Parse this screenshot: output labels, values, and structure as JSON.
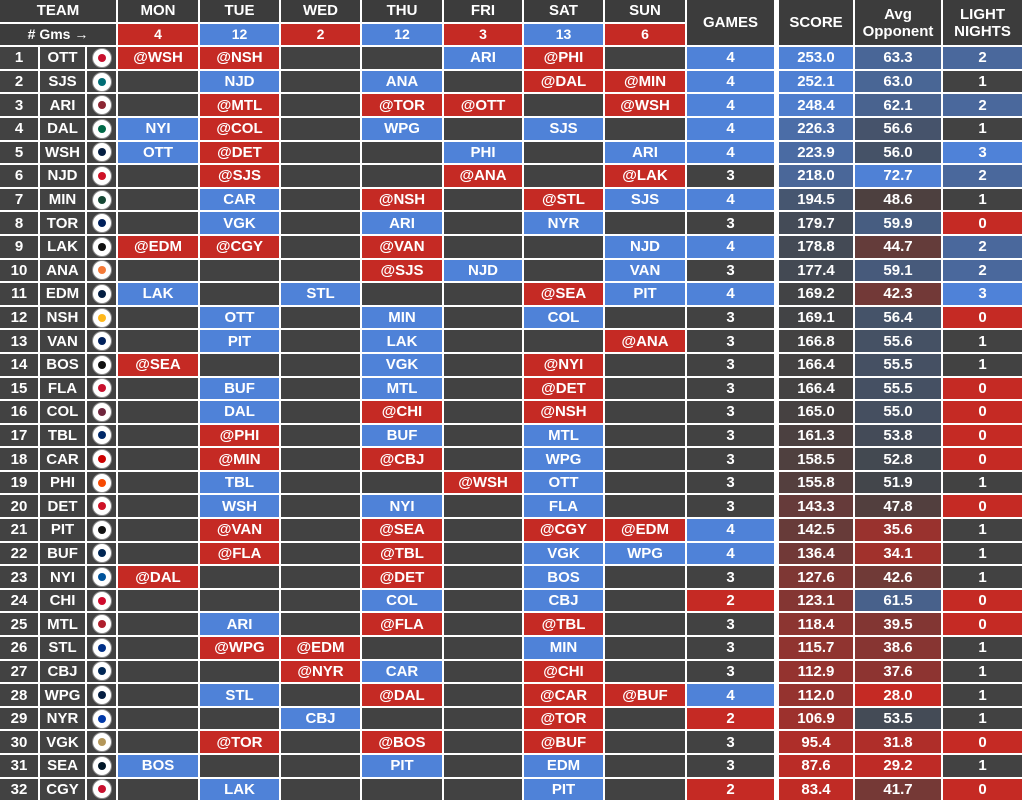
{
  "header": {
    "team": "TEAM",
    "days": [
      "MON",
      "TUE",
      "WED",
      "THU",
      "FRI",
      "SAT",
      "SUN"
    ],
    "games": "GAMES",
    "score": "SCORE",
    "avg_line1": "Avg",
    "avg_line2": "Opponent",
    "light_line1": "LIGHT",
    "light_line2": "NIGHTS",
    "gms_label": "# Gms →",
    "day_counts": [
      "4",
      "12",
      "2",
      "12",
      "3",
      "13",
      "6"
    ]
  },
  "colors": {
    "blue": "#4f82d8",
    "red": "#c52a24",
    "dark": "#424242"
  },
  "rows": [
    {
      "rank": "1",
      "team": "OTT",
      "logo": "senators-logo",
      "days": [
        "@WSH",
        "@NSH",
        "",
        "",
        "ARI",
        "@PHI",
        ""
      ],
      "games": "4",
      "score": "253.0",
      "avg": "63.3",
      "light": "2",
      "logo_color": "#c8102e"
    },
    {
      "rank": "2",
      "team": "SJS",
      "logo": "sharks-logo",
      "days": [
        "",
        "NJD",
        "",
        "ANA",
        "",
        "@DAL",
        "@MIN"
      ],
      "games": "4",
      "score": "252.1",
      "avg": "63.0",
      "light": "1",
      "logo_color": "#006d75"
    },
    {
      "rank": "3",
      "team": "ARI",
      "logo": "coyotes-logo",
      "days": [
        "",
        "@MTL",
        "",
        "@TOR",
        "@OTT",
        "",
        "@WSH"
      ],
      "games": "4",
      "score": "248.4",
      "avg": "62.1",
      "light": "2",
      "logo_color": "#8c2633"
    },
    {
      "rank": "4",
      "team": "DAL",
      "logo": "stars-logo",
      "days": [
        "NYI",
        "@COL",
        "",
        "WPG",
        "",
        "SJS",
        ""
      ],
      "games": "4",
      "score": "226.3",
      "avg": "56.6",
      "light": "1",
      "logo_color": "#006847"
    },
    {
      "rank": "5",
      "team": "WSH",
      "logo": "capitals-logo",
      "days": [
        "OTT",
        "@DET",
        "",
        "",
        "PHI",
        "",
        "ARI"
      ],
      "games": "4",
      "score": "223.9",
      "avg": "56.0",
      "light": "3",
      "logo_color": "#041e42"
    },
    {
      "rank": "6",
      "team": "NJD",
      "logo": "devils-logo",
      "days": [
        "",
        "@SJS",
        "",
        "",
        "@ANA",
        "",
        "@LAK"
      ],
      "games": "3",
      "score": "218.0",
      "avg": "72.7",
      "light": "2",
      "logo_color": "#ce1126"
    },
    {
      "rank": "7",
      "team": "MIN",
      "logo": "wild-logo",
      "days": [
        "",
        "CAR",
        "",
        "@NSH",
        "",
        "@STL",
        "SJS"
      ],
      "games": "4",
      "score": "194.5",
      "avg": "48.6",
      "light": "1",
      "logo_color": "#154734"
    },
    {
      "rank": "8",
      "team": "TOR",
      "logo": "maple-leafs-logo",
      "days": [
        "",
        "VGK",
        "",
        "ARI",
        "",
        "NYR",
        ""
      ],
      "games": "3",
      "score": "179.7",
      "avg": "59.9",
      "light": "0",
      "logo_color": "#00205b"
    },
    {
      "rank": "9",
      "team": "LAK",
      "logo": "kings-logo",
      "days": [
        "@EDM",
        "@CGY",
        "",
        "@VAN",
        "",
        "",
        "NJD"
      ],
      "games": "4",
      "score": "178.8",
      "avg": "44.7",
      "light": "2",
      "logo_color": "#111111"
    },
    {
      "rank": "10",
      "team": "ANA",
      "logo": "ducks-logo",
      "days": [
        "",
        "",
        "",
        "@SJS",
        "NJD",
        "",
        "VAN"
      ],
      "games": "3",
      "score": "177.4",
      "avg": "59.1",
      "light": "2",
      "logo_color": "#f47a38"
    },
    {
      "rank": "11",
      "team": "EDM",
      "logo": "oilers-logo",
      "days": [
        "LAK",
        "",
        "STL",
        "",
        "",
        "@SEA",
        "PIT"
      ],
      "games": "4",
      "score": "169.2",
      "avg": "42.3",
      "light": "3",
      "logo_color": "#041e42"
    },
    {
      "rank": "12",
      "team": "NSH",
      "logo": "predators-logo",
      "days": [
        "",
        "OTT",
        "",
        "MIN",
        "",
        "COL",
        ""
      ],
      "games": "3",
      "score": "169.1",
      "avg": "56.4",
      "light": "0",
      "logo_color": "#ffb81c"
    },
    {
      "rank": "13",
      "team": "VAN",
      "logo": "canucks-logo",
      "days": [
        "",
        "PIT",
        "",
        "LAK",
        "",
        "",
        "@ANA"
      ],
      "games": "3",
      "score": "166.8",
      "avg": "55.6",
      "light": "1",
      "logo_color": "#00205b"
    },
    {
      "rank": "14",
      "team": "BOS",
      "logo": "bruins-logo",
      "days": [
        "@SEA",
        "",
        "",
        "VGK",
        "",
        "@NYI",
        ""
      ],
      "games": "3",
      "score": "166.4",
      "avg": "55.5",
      "light": "1",
      "logo_color": "#111111"
    },
    {
      "rank": "15",
      "team": "FLA",
      "logo": "panthers-logo",
      "days": [
        "",
        "BUF",
        "",
        "MTL",
        "",
        "@DET",
        ""
      ],
      "games": "3",
      "score": "166.4",
      "avg": "55.5",
      "light": "0",
      "logo_color": "#c8102e"
    },
    {
      "rank": "16",
      "team": "COL",
      "logo": "avalanche-logo",
      "days": [
        "",
        "DAL",
        "",
        "@CHI",
        "",
        "@NSH",
        ""
      ],
      "games": "3",
      "score": "165.0",
      "avg": "55.0",
      "light": "0",
      "logo_color": "#6f263d"
    },
    {
      "rank": "17",
      "team": "TBL",
      "logo": "lightning-logo",
      "days": [
        "",
        "@PHI",
        "",
        "BUF",
        "",
        "MTL",
        ""
      ],
      "games": "3",
      "score": "161.3",
      "avg": "53.8",
      "light": "0",
      "logo_color": "#002868"
    },
    {
      "rank": "18",
      "team": "CAR",
      "logo": "hurricanes-logo",
      "days": [
        "",
        "@MIN",
        "",
        "@CBJ",
        "",
        "WPG",
        ""
      ],
      "games": "3",
      "score": "158.5",
      "avg": "52.8",
      "light": "0",
      "logo_color": "#cc0000"
    },
    {
      "rank": "19",
      "team": "PHI",
      "logo": "flyers-logo",
      "days": [
        "",
        "TBL",
        "",
        "",
        "@WSH",
        "OTT",
        ""
      ],
      "games": "3",
      "score": "155.8",
      "avg": "51.9",
      "light": "1",
      "logo_color": "#f74902"
    },
    {
      "rank": "20",
      "team": "DET",
      "logo": "red-wings-logo",
      "days": [
        "",
        "WSH",
        "",
        "NYI",
        "",
        "FLA",
        ""
      ],
      "games": "3",
      "score": "143.3",
      "avg": "47.8",
      "light": "0",
      "logo_color": "#ce1126"
    },
    {
      "rank": "21",
      "team": "PIT",
      "logo": "penguins-logo",
      "days": [
        "",
        "@VAN",
        "",
        "@SEA",
        "",
        "@CGY",
        "@EDM"
      ],
      "games": "4",
      "score": "142.5",
      "avg": "35.6",
      "light": "1",
      "logo_color": "#111111"
    },
    {
      "rank": "22",
      "team": "BUF",
      "logo": "sabres-logo",
      "days": [
        "",
        "@FLA",
        "",
        "@TBL",
        "",
        "VGK",
        "WPG"
      ],
      "games": "4",
      "score": "136.4",
      "avg": "34.1",
      "light": "1",
      "logo_color": "#002654"
    },
    {
      "rank": "23",
      "team": "NYI",
      "logo": "islanders-logo",
      "days": [
        "@DAL",
        "",
        "",
        "@DET",
        "",
        "BOS",
        ""
      ],
      "games": "3",
      "score": "127.6",
      "avg": "42.6",
      "light": "1",
      "logo_color": "#00539b"
    },
    {
      "rank": "24",
      "team": "CHI",
      "logo": "blackhawks-logo",
      "days": [
        "",
        "",
        "",
        "COL",
        "",
        "CBJ",
        ""
      ],
      "games": "2",
      "score": "123.1",
      "avg": "61.5",
      "light": "0",
      "logo_color": "#cf0a2c"
    },
    {
      "rank": "25",
      "team": "MTL",
      "logo": "canadiens-logo",
      "days": [
        "",
        "ARI",
        "",
        "@FLA",
        "",
        "@TBL",
        ""
      ],
      "games": "3",
      "score": "118.4",
      "avg": "39.5",
      "light": "0",
      "logo_color": "#af1e2d"
    },
    {
      "rank": "26",
      "team": "STL",
      "logo": "blues-logo",
      "days": [
        "",
        "@WPG",
        "@EDM",
        "",
        "",
        "MIN",
        ""
      ],
      "games": "3",
      "score": "115.7",
      "avg": "38.6",
      "light": "1",
      "logo_color": "#002f87"
    },
    {
      "rank": "27",
      "team": "CBJ",
      "logo": "blue-jackets-logo",
      "days": [
        "",
        "",
        "@NYR",
        "CAR",
        "",
        "@CHI",
        ""
      ],
      "games": "3",
      "score": "112.9",
      "avg": "37.6",
      "light": "1",
      "logo_color": "#002654"
    },
    {
      "rank": "28",
      "team": "WPG",
      "logo": "jets-logo",
      "days": [
        "",
        "STL",
        "",
        "@DAL",
        "",
        "@CAR",
        "@BUF"
      ],
      "games": "4",
      "score": "112.0",
      "avg": "28.0",
      "light": "1",
      "logo_color": "#041e42"
    },
    {
      "rank": "29",
      "team": "NYR",
      "logo": "rangers-logo",
      "days": [
        "",
        "",
        "CBJ",
        "",
        "",
        "@TOR",
        ""
      ],
      "games": "2",
      "score": "106.9",
      "avg": "53.5",
      "light": "1",
      "logo_color": "#0038a8"
    },
    {
      "rank": "30",
      "team": "VGK",
      "logo": "golden-knights-logo",
      "days": [
        "",
        "@TOR",
        "",
        "@BOS",
        "",
        "@BUF",
        ""
      ],
      "games": "3",
      "score": "95.4",
      "avg": "31.8",
      "light": "0",
      "logo_color": "#b4975a"
    },
    {
      "rank": "31",
      "team": "SEA",
      "logo": "kraken-logo",
      "days": [
        "BOS",
        "",
        "",
        "PIT",
        "",
        "EDM",
        ""
      ],
      "games": "3",
      "score": "87.6",
      "avg": "29.2",
      "light": "1",
      "logo_color": "#001628"
    },
    {
      "rank": "32",
      "team": "CGY",
      "logo": "flames-logo",
      "days": [
        "",
        "LAK",
        "",
        "",
        "",
        "PIT",
        ""
      ],
      "games": "2",
      "score": "83.4",
      "avg": "41.7",
      "light": "0",
      "logo_color": "#c8102e"
    }
  ]
}
